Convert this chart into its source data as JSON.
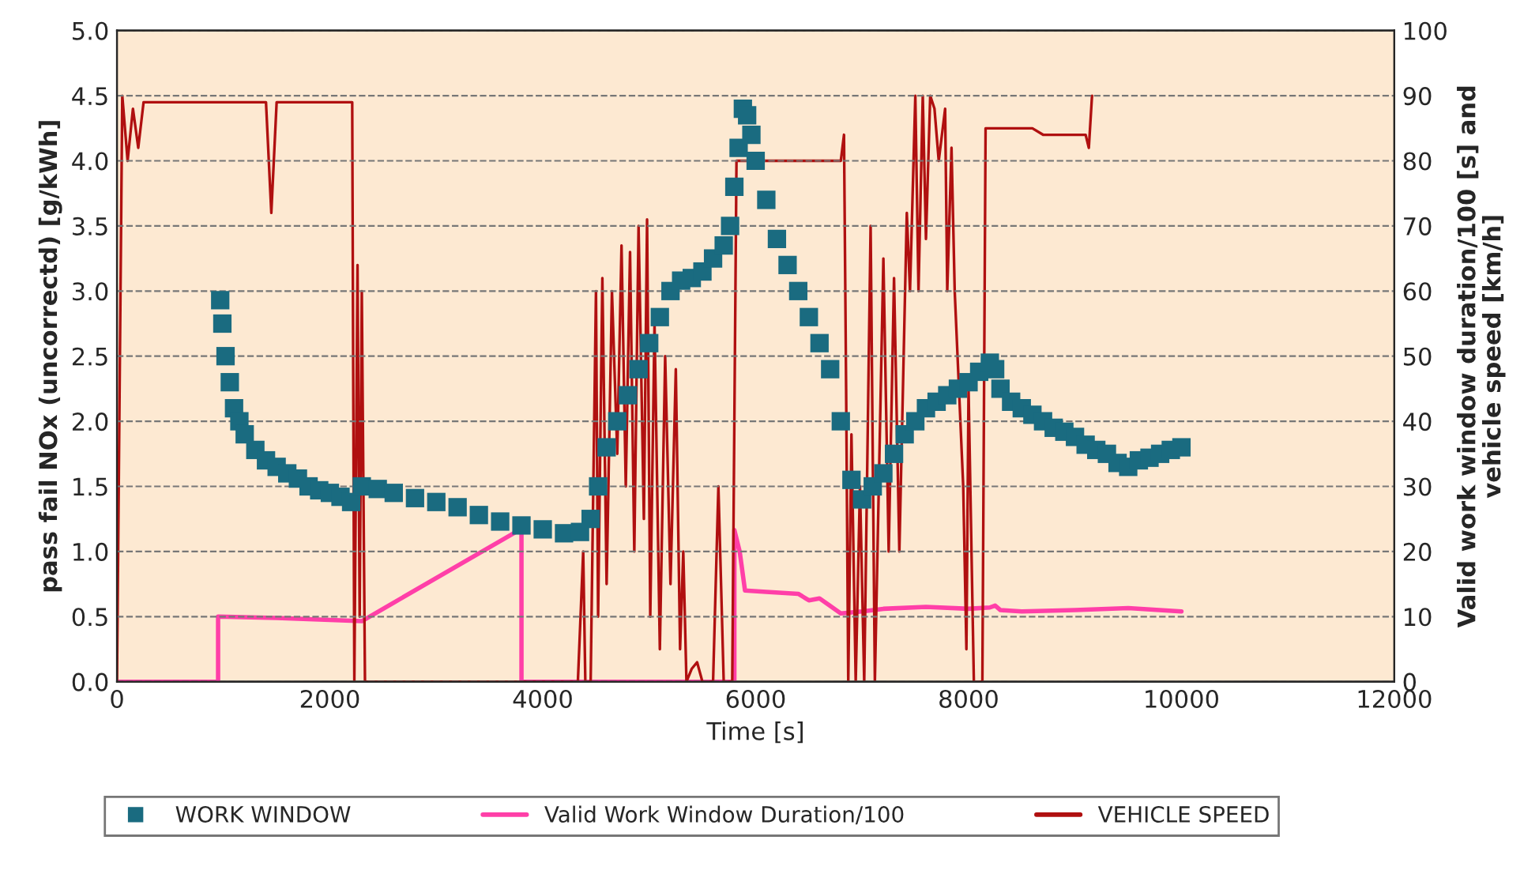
{
  "chart_data": {
    "type": "scatter",
    "xlabel": "Time [s]",
    "ylabel": "pass fail NOx (uncorrectd) [g/kWh]",
    "y2label": "Valid work window duration/100 [s] and\nvehicle speed [km/h]",
    "xlim": [
      0,
      12000
    ],
    "xticks": [
      0,
      2000,
      4000,
      6000,
      8000,
      10000,
      12000
    ],
    "ylim": [
      0,
      5
    ],
    "yticks": [
      {
        "value": 0,
        "label": "0.0"
      },
      {
        "value": 0.5,
        "label": "0.5"
      },
      {
        "value": 1,
        "label": "1.0"
      },
      {
        "value": 1.5,
        "label": "1.5"
      },
      {
        "value": 2,
        "label": "2.0"
      },
      {
        "value": 2.5,
        "label": "2.5"
      },
      {
        "value": 3,
        "label": "3.0"
      },
      {
        "value": 3.5,
        "label": "3.5"
      },
      {
        "value": 4,
        "label": "4.0"
      },
      {
        "value": 4.5,
        "label": "4.5"
      },
      {
        "value": 5,
        "label": "5.0"
      }
    ],
    "y2lim": [
      0,
      100
    ],
    "y2ticks": [
      0,
      10,
      20,
      30,
      40,
      50,
      60,
      70,
      80,
      90,
      100
    ],
    "grid": "y",
    "legend": "bottom",
    "series": [
      {
        "name": "WORK WINDOW",
        "marker": "square",
        "color": "#1a6b80",
        "x": [
          970,
          990,
          1020,
          1060,
          1100,
          1150,
          1200,
          1300,
          1400,
          1500,
          1600,
          1700,
          1800,
          1900,
          2000,
          2100,
          2200,
          2300,
          2450,
          2600,
          2800,
          3000,
          3200,
          3400,
          3600,
          3800,
          4000,
          4200,
          4350,
          4450,
          4520,
          4600,
          4700,
          4800,
          4900,
          5000,
          5100,
          5200,
          5300,
          5400,
          5500,
          5600,
          5700,
          5760,
          5800,
          5840,
          5880,
          5920,
          5960,
          6000,
          6100,
          6200,
          6300,
          6400,
          6500,
          6600,
          6700,
          6800,
          6900,
          7000,
          7100,
          7200,
          7300,
          7400,
          7500,
          7600,
          7700,
          7800,
          7900,
          8000,
          8100,
          8200,
          8250,
          8300,
          8400,
          8500,
          8600,
          8700,
          8800,
          8900,
          9000,
          9100,
          9200,
          9300,
          9400,
          9500,
          9600,
          9700,
          9800,
          9900,
          10000
        ],
        "values": [
          2.93,
          2.75,
          2.5,
          2.3,
          2.1,
          2.0,
          1.9,
          1.78,
          1.7,
          1.65,
          1.6,
          1.56,
          1.5,
          1.47,
          1.45,
          1.42,
          1.38,
          1.5,
          1.48,
          1.45,
          1.41,
          1.38,
          1.34,
          1.28,
          1.23,
          1.2,
          1.17,
          1.14,
          1.15,
          1.25,
          1.5,
          1.8,
          2.0,
          2.2,
          2.4,
          2.6,
          2.8,
          3.0,
          3.08,
          3.1,
          3.15,
          3.25,
          3.35,
          3.5,
          3.8,
          4.1,
          4.4,
          4.35,
          4.2,
          4.0,
          3.7,
          3.4,
          3.2,
          3.0,
          2.8,
          2.6,
          2.4,
          2.0,
          1.55,
          1.4,
          1.5,
          1.6,
          1.75,
          1.9,
          2.0,
          2.1,
          2.15,
          2.2,
          2.25,
          2.3,
          2.38,
          2.45,
          2.4,
          2.25,
          2.15,
          2.1,
          2.05,
          2.0,
          1.95,
          1.92,
          1.88,
          1.82,
          1.78,
          1.75,
          1.68,
          1.65,
          1.7,
          1.72,
          1.75,
          1.78,
          1.8
        ]
      },
      {
        "name": "Valid Work Window Duration/100",
        "type": "line",
        "axis": "y2",
        "color": "#ff3fa8",
        "x": [
          0,
          950,
          950,
          1500,
          2000,
          2300,
          3800,
          3800,
          5800,
          5800,
          5850,
          5900,
          6100,
          6400,
          6500,
          6600,
          6800,
          7000,
          7200,
          7600,
          8000,
          8200,
          8250,
          8300,
          8500,
          9000,
          9500,
          10000
        ],
        "values": [
          0,
          0,
          10,
          9.8,
          9.5,
          9.3,
          23.5,
          0,
          0,
          23.3,
          20,
          14,
          13.8,
          13.5,
          12.5,
          12.8,
          10.5,
          10.8,
          11.2,
          11.5,
          11.2,
          11.4,
          11.7,
          11,
          10.8,
          11,
          11.3,
          10.8
        ]
      },
      {
        "name": "VEHICLE SPEED",
        "type": "line",
        "axis": "y2",
        "color": "#b01010",
        "x": [
          0,
          50,
          100,
          150,
          200,
          250,
          300,
          1400,
          1450,
          1500,
          2200,
          2210,
          2230,
          2260,
          2280,
          2300,
          2330,
          4330,
          4380,
          4400,
          4450,
          4500,
          4520,
          4560,
          4600,
          4650,
          4700,
          4740,
          4780,
          4820,
          4860,
          4900,
          4950,
          4980,
          5010,
          5050,
          5100,
          5150,
          5200,
          5250,
          5290,
          5320,
          5350,
          5400,
          5450,
          5500,
          5600,
          5650,
          5700,
          5780,
          5820,
          5850,
          6800,
          6830,
          6850,
          6870,
          6900,
          6940,
          6980,
          7020,
          7080,
          7120,
          7200,
          7250,
          7300,
          7350,
          7420,
          7450,
          7500,
          7530,
          7570,
          7600,
          7640,
          7680,
          7720,
          7780,
          7800,
          7840,
          7870,
          7950,
          7980,
          8000,
          8050,
          8130,
          8160,
          8600,
          8700,
          9100,
          9130,
          9160
        ],
        "values": [
          0,
          90,
          80,
          88,
          82,
          89,
          89,
          89,
          72,
          89,
          89,
          89,
          0,
          64,
          10,
          60,
          0,
          0,
          20,
          0,
          0,
          60,
          10,
          62,
          15,
          60,
          35,
          67,
          30,
          66,
          20,
          70,
          25,
          71,
          10,
          55,
          5,
          50,
          15,
          48,
          5,
          20,
          0,
          2,
          3,
          0,
          0,
          30,
          0,
          0,
          80,
          80,
          80,
          84,
          45,
          0,
          38,
          0,
          30,
          0,
          70,
          0,
          65,
          20,
          62,
          20,
          72,
          60,
          90,
          60,
          90,
          68,
          90,
          88,
          80,
          88,
          60,
          82,
          60,
          30,
          5,
          45,
          0,
          0,
          85,
          85,
          84,
          84,
          82,
          90
        ]
      }
    ]
  }
}
